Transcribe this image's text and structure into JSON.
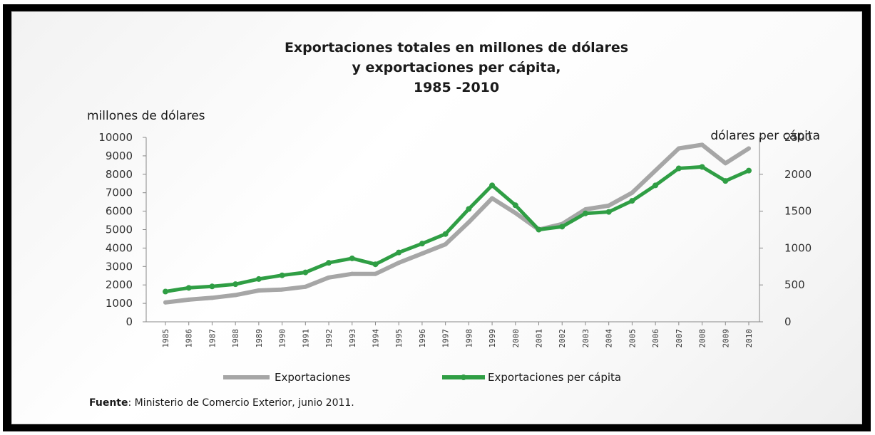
{
  "chart_data": {
    "type": "line",
    "title_lines": [
      "Exportaciones totales en millones de dólares",
      "y exportaciones  per cápita,",
      "1985 -2010"
    ],
    "ylabel_left": "millones de dólares",
    "ylabel_right": "dólares per cápita",
    "ylim_left": [
      0,
      10000
    ],
    "ylim_right": [
      0,
      2500
    ],
    "yticks_left": [
      "0",
      "1000",
      "2000",
      "3000",
      "4000",
      "5000",
      "6000",
      "7000",
      "8000",
      "9000",
      "10000"
    ],
    "yticks_right": [
      "0",
      "500",
      "1000",
      "1500",
      "2000",
      "2500"
    ],
    "x": [
      "1985",
      "1986",
      "1987",
      "1988",
      "1989",
      "1990",
      "1991",
      "1992",
      "1993",
      "1994",
      "1995",
      "1996",
      "1997",
      "1998",
      "1999",
      "2000",
      "2001",
      "2002",
      "2003",
      "2004",
      "2005",
      "2006",
      "2007",
      "2008",
      "2009",
      "2010"
    ],
    "series": [
      {
        "name": "Exportaciones",
        "axis": "left",
        "color": "#a6a6a6",
        "values": [
          1050,
          1200,
          1300,
          1450,
          1700,
          1750,
          1900,
          2400,
          2600,
          2600,
          3200,
          3700,
          4200,
          5400,
          6700,
          5900,
          5000,
          5300,
          6100,
          6300,
          7000,
          8200,
          9400,
          9600,
          8600,
          9400
        ]
      },
      {
        "name": "Exportaciones per cápita",
        "axis": "right",
        "color": "#2f9e44",
        "values": [
          410,
          460,
          480,
          510,
          580,
          630,
          670,
          800,
          860,
          780,
          940,
          1060,
          1190,
          1530,
          1850,
          1580,
          1250,
          1290,
          1470,
          1490,
          1640,
          1850,
          2080,
          2100,
          1910,
          2050
        ]
      }
    ],
    "legend_position": "bottom"
  },
  "source": {
    "label": "Fuente",
    "text": ": Ministerio de Comercio Exterior, junio 2011."
  }
}
